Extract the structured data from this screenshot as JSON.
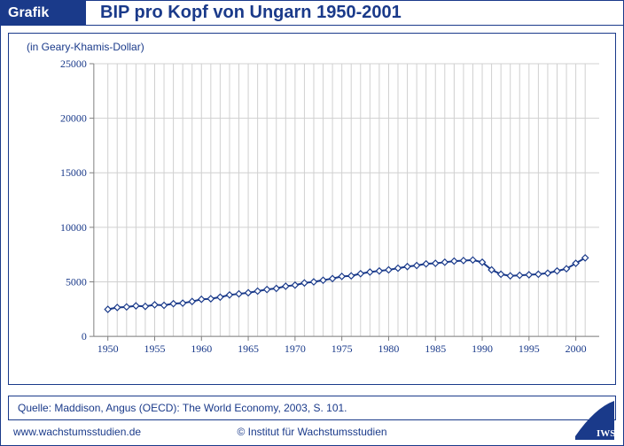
{
  "header": {
    "tag": "Grafik",
    "title": "BIP pro Kopf von Ungarn 1950-2001"
  },
  "chart": {
    "type": "line",
    "subtitle": "(in Geary-Khamis-Dollar)",
    "x_start": 1950,
    "x_end": 2001,
    "xlim": [
      1948.5,
      2002.5
    ],
    "xtick_labels": [
      "1950",
      "1955",
      "1960",
      "1965",
      "1970",
      "1975",
      "1980",
      "1985",
      "1990",
      "1995",
      "2000"
    ],
    "xtick_values": [
      1950,
      1955,
      1960,
      1965,
      1970,
      1975,
      1980,
      1985,
      1990,
      1995,
      2000
    ],
    "ylim": [
      0,
      25000
    ],
    "yticks": [
      0,
      5000,
      10000,
      15000,
      20000,
      25000
    ],
    "values": [
      2480,
      2650,
      2700,
      2800,
      2750,
      2900,
      2850,
      3000,
      3050,
      3200,
      3400,
      3450,
      3600,
      3800,
      3900,
      4000,
      4150,
      4300,
      4400,
      4600,
      4700,
      4900,
      5000,
      5150,
      5300,
      5500,
      5550,
      5750,
      5900,
      6000,
      6100,
      6250,
      6400,
      6500,
      6650,
      6700,
      6800,
      6900,
      6950,
      7000,
      6800,
      6100,
      5700,
      5550,
      5600,
      5650,
      5700,
      5800,
      6000,
      6200,
      6700,
      7200
    ],
    "line_color": "#1a3a8a",
    "line_width": 2,
    "marker_fill": "#ffffff",
    "marker_stroke": "#1a3a8a",
    "marker_size": 3.5,
    "grid_color": "#d0d0d0",
    "axis_color": "#808080",
    "background_color": "#ffffff",
    "label_fontsize": 12,
    "label_color": "#1a3a8a"
  },
  "footer": {
    "source": "Quelle: Maddison, Angus (OECD): The World Economy, 2003, S. 101."
  },
  "bottom": {
    "url": "www.wachstumsstudien.de",
    "copyright": "© Institut für Wachstumsstudien"
  },
  "logo": {
    "text": "IWS",
    "fill": "#1a3a8a"
  }
}
